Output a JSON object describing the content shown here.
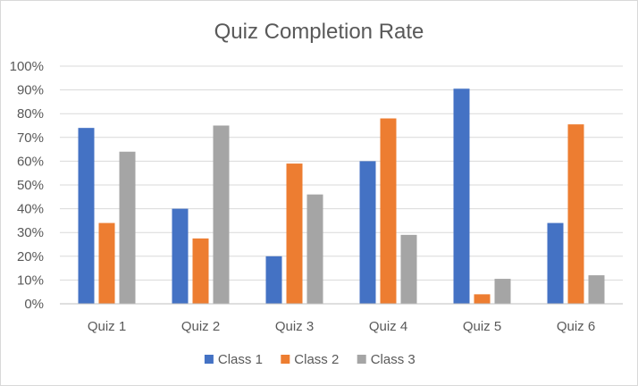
{
  "chart_data": {
    "type": "bar",
    "title": "Quiz Completion Rate",
    "xlabel": "",
    "ylabel": "",
    "categories": [
      "Quiz 1",
      "Quiz 2",
      "Quiz 3",
      "Quiz 4",
      "Quiz 5",
      "Quiz 6"
    ],
    "series": [
      {
        "name": "Class 1",
        "color": "#4472c4",
        "values": [
          0.74,
          0.4,
          0.2,
          0.6,
          0.905,
          0.34
        ]
      },
      {
        "name": "Class 2",
        "color": "#ed7d31",
        "values": [
          0.34,
          0.275,
          0.59,
          0.78,
          0.04,
          0.755
        ]
      },
      {
        "name": "Class 3",
        "color": "#a5a5a5",
        "values": [
          0.64,
          0.75,
          0.46,
          0.29,
          0.105,
          0.12
        ]
      }
    ],
    "ylim": [
      0,
      1
    ],
    "yticks": [
      "0%",
      "10%",
      "20%",
      "30%",
      "40%",
      "50%",
      "60%",
      "70%",
      "80%",
      "90%",
      "100%"
    ],
    "grid": true,
    "legend_position": "bottom"
  }
}
